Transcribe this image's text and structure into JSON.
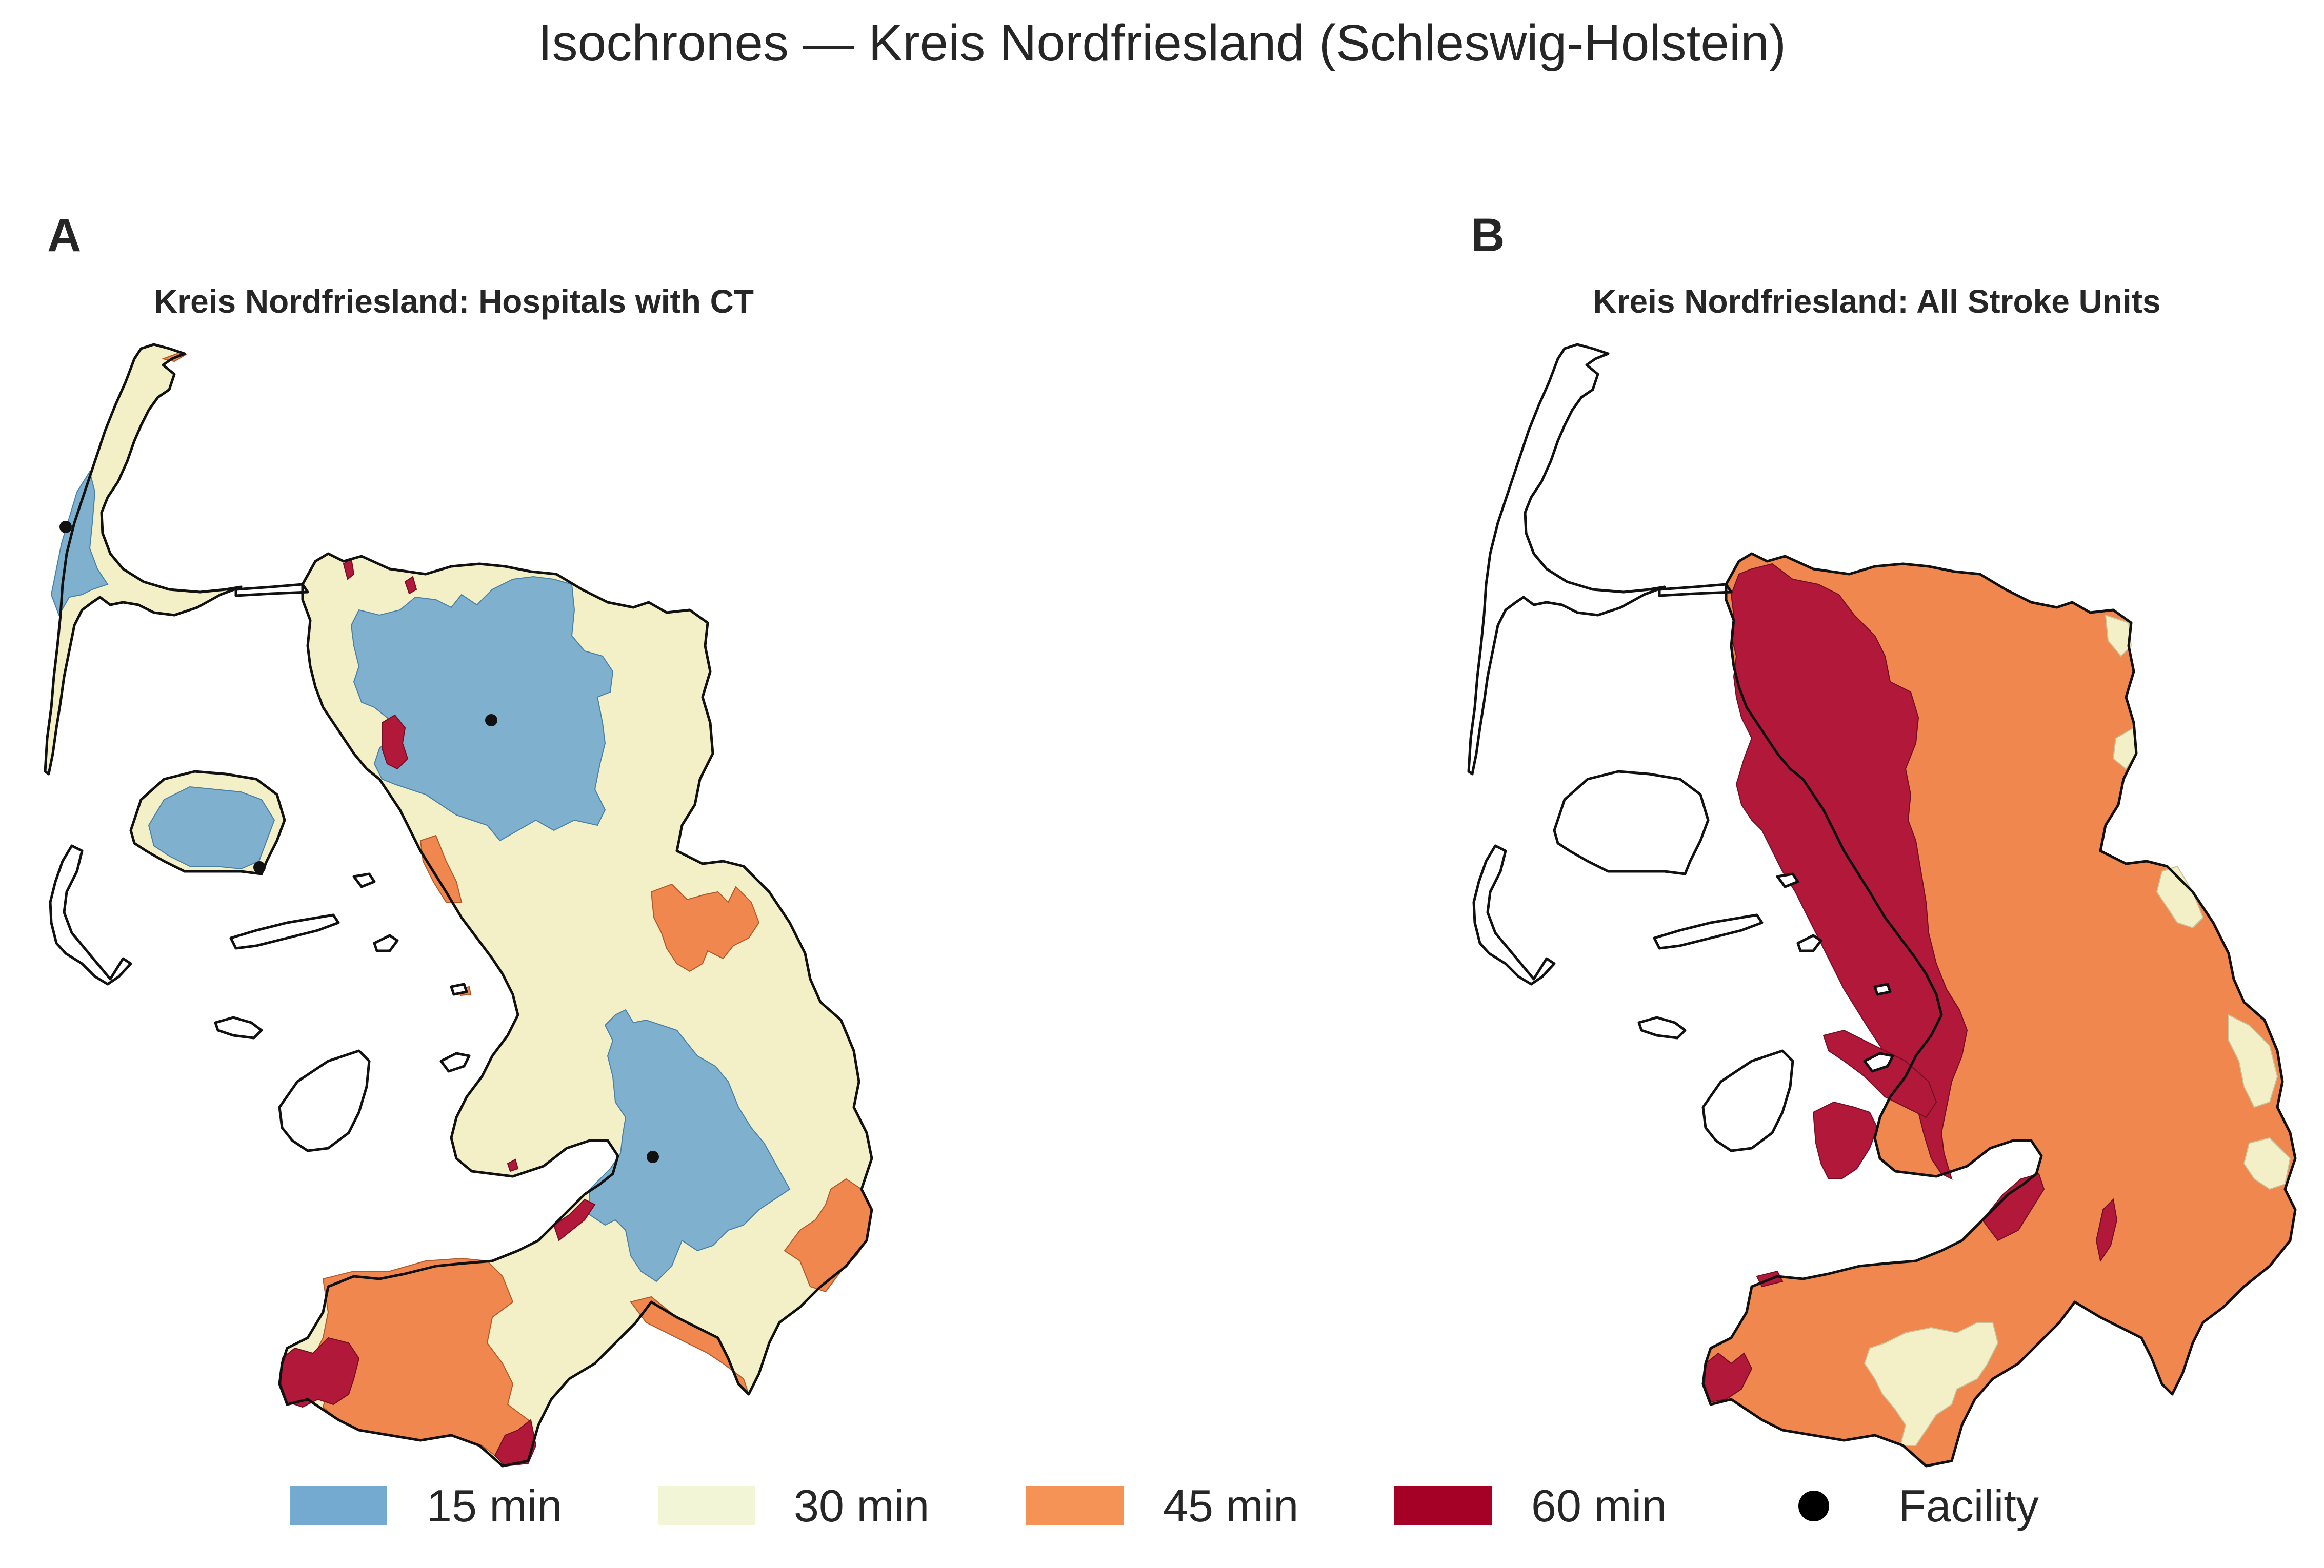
{
  "figure": {
    "suptitle": "Isochrones — Kreis Nordfriesland (Schleswig-Holstein)"
  },
  "panels": [
    {
      "letter": "A",
      "title": "Kreis Nordfriesland: Hospitals with CT"
    },
    {
      "letter": "B",
      "title": "Kreis Nordfriesland: All Stroke Units"
    }
  ],
  "legend": {
    "items": [
      {
        "label": "15 min",
        "color": "#74aad0"
      },
      {
        "label": "30 min",
        "color": "#f3efc6"
      },
      {
        "label": "45 min",
        "color": "#f59356"
      },
      {
        "label": "60 min",
        "color": "#a50026"
      },
      {
        "label": "Facility",
        "color": "#000000",
        "marker": "dot"
      }
    ]
  },
  "colors": {
    "iso_15": "#7fb1cf",
    "iso_30": "#f3efc6",
    "iso_45": "#f0874f",
    "iso_60": "#b2183a",
    "facility": "#111111",
    "coastline": "#111111"
  }
}
